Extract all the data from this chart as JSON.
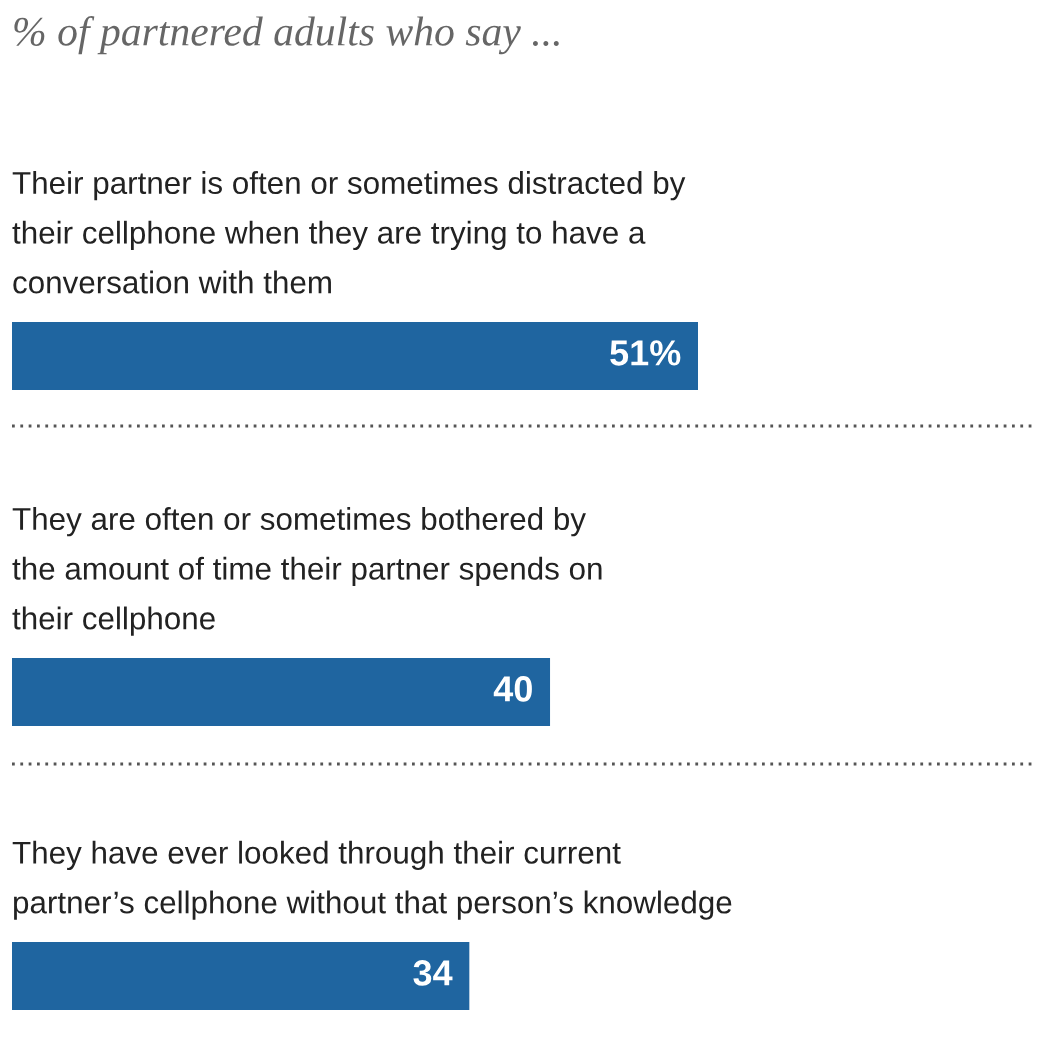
{
  "chart_data": [
    {
      "type": "bar",
      "orientation": "horizontal",
      "title": "% of partnered adults who say ...",
      "categories": [
        "Their partner is often or sometimes distracted by\ntheir cellphone when they are trying to have a\nconversation with them"
      ],
      "values": [
        51
      ],
      "value_labels": [
        "51%"
      ],
      "color": "#1f65a0"
    },
    {
      "type": "bar",
      "orientation": "horizontal",
      "categories": [
        "They are often or sometimes bothered by\nthe amount of time their partner spends on\ntheir cellphone"
      ],
      "values": [
        40
      ],
      "value_labels": [
        "40"
      ],
      "color": "#1f65a0"
    },
    {
      "type": "bar",
      "orientation": "horizontal",
      "categories": [
        "They have ever looked through their current\npartner’s cellphone without that person’s knowledge"
      ],
      "values": [
        34
      ],
      "value_labels": [
        "34"
      ],
      "color": "#1f65a0"
    }
  ]
}
